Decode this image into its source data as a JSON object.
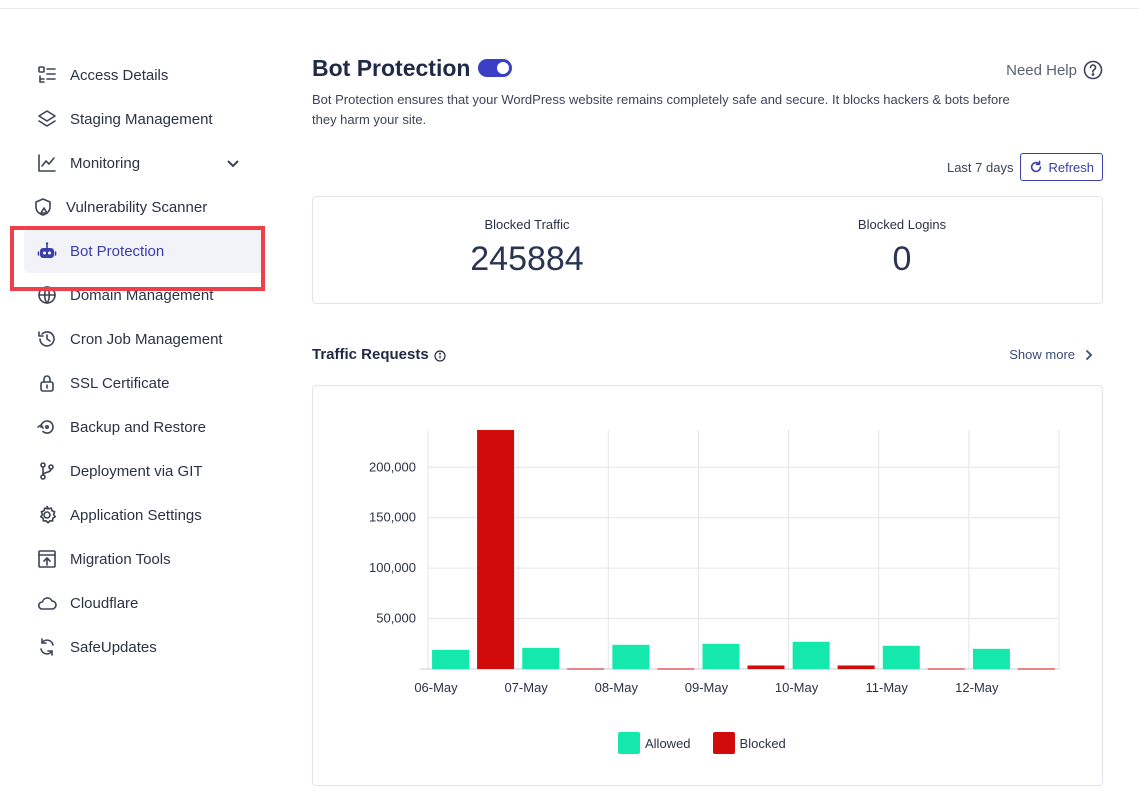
{
  "sidebar": {
    "items": [
      {
        "label": "Access Details",
        "icon": "access-details-icon"
      },
      {
        "label": "Staging Management",
        "icon": "layers-icon"
      },
      {
        "label": "Monitoring",
        "icon": "chart-line-icon"
      },
      {
        "label": "Vulnerability Scanner",
        "icon": "shield-icon"
      },
      {
        "label": "Bot Protection",
        "icon": "robot-icon"
      },
      {
        "label": "Domain Management",
        "icon": "globe-www-icon"
      },
      {
        "label": "Cron Job Management",
        "icon": "clock-history-icon"
      },
      {
        "label": "SSL Certificate",
        "icon": "lock-icon"
      },
      {
        "label": "Backup and Restore",
        "icon": "backup-icon"
      },
      {
        "label": "Deployment via GIT",
        "icon": "git-branch-icon"
      },
      {
        "label": "Application Settings",
        "icon": "gear-icon"
      },
      {
        "label": "Migration Tools",
        "icon": "migration-icon"
      },
      {
        "label": "Cloudflare",
        "icon": "cloud-icon"
      },
      {
        "label": "SafeUpdates",
        "icon": "refresh-cycle-icon"
      }
    ],
    "active": "Bot Protection"
  },
  "header": {
    "title": "Bot Protection",
    "toggle_on": true,
    "need_help": "Need Help",
    "description": "Bot Protection ensures that your WordPress website remains completely safe and secure. It blocks hackers & bots before they harm your site."
  },
  "range": {
    "label": "Last 7 days",
    "refresh": "Refresh"
  },
  "stats": {
    "blocked_traffic_label": "Blocked Traffic",
    "blocked_traffic_value": "245884",
    "blocked_logins_label": "Blocked Logins",
    "blocked_logins_value": "0"
  },
  "section": {
    "title": "Traffic Requests",
    "show_more": "Show more"
  },
  "colors": {
    "allowed": "#14e8ad",
    "blocked": "#d10b0b",
    "accent": "#3b3fc6",
    "highlight": "#ee3f4a"
  },
  "chart_data": {
    "type": "bar",
    "categories": [
      "06-May",
      "07-May",
      "08-May",
      "09-May",
      "10-May",
      "11-May",
      "12-May"
    ],
    "series": [
      {
        "name": "Allowed",
        "values": [
          19000,
          21000,
          24000,
          25000,
          27000,
          23000,
          20000
        ]
      },
      {
        "name": "Blocked",
        "values": [
          237000,
          500,
          500,
          3500,
          3500,
          500,
          500
        ]
      }
    ],
    "yticks": [
      "50,000",
      "100,000",
      "150,000",
      "200,000"
    ],
    "ylim": [
      0,
      237000
    ],
    "grid": true,
    "legend_position": "bottom"
  }
}
